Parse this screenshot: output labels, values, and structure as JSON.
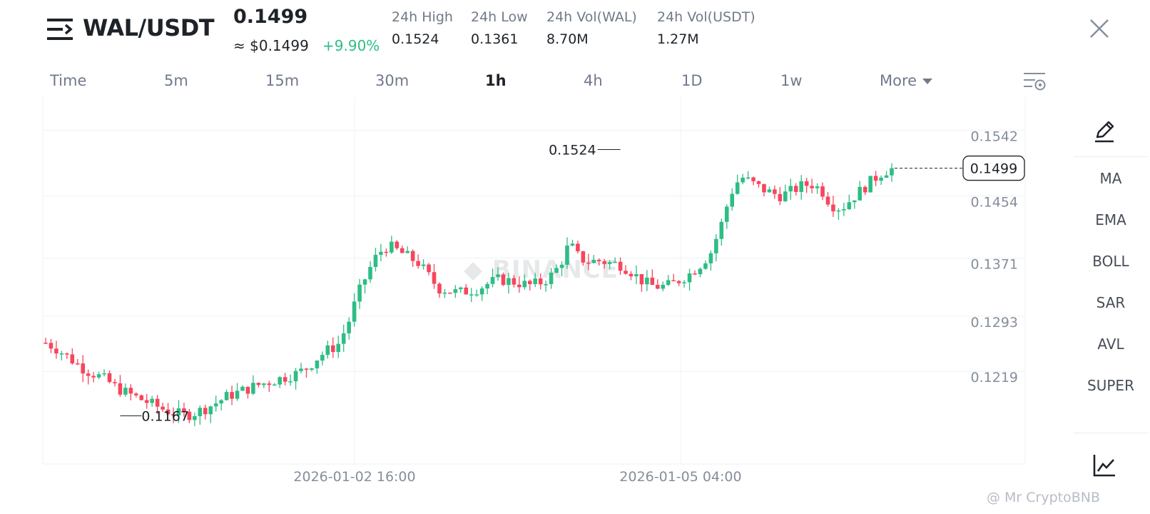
{
  "header": {
    "pair": "WAL/USDT",
    "last_price": "0.1499",
    "usd_price": "≈ $0.1499",
    "change": "+9.90%",
    "stats": [
      {
        "label": "24h High",
        "value": "0.1524"
      },
      {
        "label": "24h Low",
        "value": "0.1361"
      },
      {
        "label": "24h Vol(WAL)",
        "value": "8.70M"
      },
      {
        "label": "24h Vol(USDT)",
        "value": "1.27M"
      }
    ]
  },
  "intervals": {
    "tabs": [
      "Time",
      "5m",
      "15m",
      "30m",
      "1h",
      "4h",
      "1D",
      "1w",
      "More"
    ],
    "active": "1h"
  },
  "sidebar": {
    "items": [
      "MA",
      "EMA",
      "BOLL",
      "SAR",
      "AVL",
      "SUPER"
    ]
  },
  "watermark": {
    "brand": "BINANCE",
    "user": "@ Mr CryptoBNB"
  },
  "colors": {
    "up": "#2ebd85",
    "down": "#f6465d",
    "grid": "#f0f1f2",
    "label": "#848e9c"
  },
  "chart_data": {
    "type": "candlestick",
    "interval": "1h",
    "y_ticks": [
      0.1542,
      0.1454,
      0.1371,
      0.1293,
      0.1219
    ],
    "ylim": [
      0.1135,
      0.1556
    ],
    "x_labels": [
      "2026-01-02 16:00",
      "2026-01-05 04:00"
    ],
    "high_marker": {
      "label": "0.1524",
      "value": 0.1524
    },
    "low_marker": {
      "label": "0.1167",
      "value": 0.1167
    },
    "current_price": {
      "label": "0.1499",
      "value": 0.1499
    },
    "close_path": [
      0.1265,
      0.1258,
      0.1248,
      0.1238,
      0.1228,
      0.1222,
      0.1215,
      0.1205,
      0.1198,
      0.1192,
      0.1186,
      0.118,
      0.1174,
      0.117,
      0.1168,
      0.1172,
      0.1178,
      0.1185,
      0.1193,
      0.1198,
      0.1203,
      0.1208,
      0.1212,
      0.1216,
      0.122,
      0.1224,
      0.1232,
      0.1245,
      0.1255,
      0.1262,
      0.129,
      0.133,
      0.136,
      0.1385,
      0.1395,
      0.1388,
      0.138,
      0.1372,
      0.1355,
      0.1338,
      0.1335,
      0.1332,
      0.1335,
      0.1338,
      0.1345,
      0.135,
      0.1348,
      0.1345,
      0.1342,
      0.1345,
      0.1352,
      0.1368,
      0.1398,
      0.1378,
      0.1374,
      0.1375,
      0.1372,
      0.137,
      0.1362,
      0.135,
      0.1342,
      0.134,
      0.1342,
      0.135,
      0.1358,
      0.137,
      0.1385,
      0.142,
      0.1465,
      0.1488,
      0.148,
      0.1472,
      0.1466,
      0.1462,
      0.1468,
      0.1475,
      0.1478,
      0.147,
      0.145,
      0.1445,
      0.1458,
      0.147,
      0.1482,
      0.1493,
      0.1499
    ]
  }
}
